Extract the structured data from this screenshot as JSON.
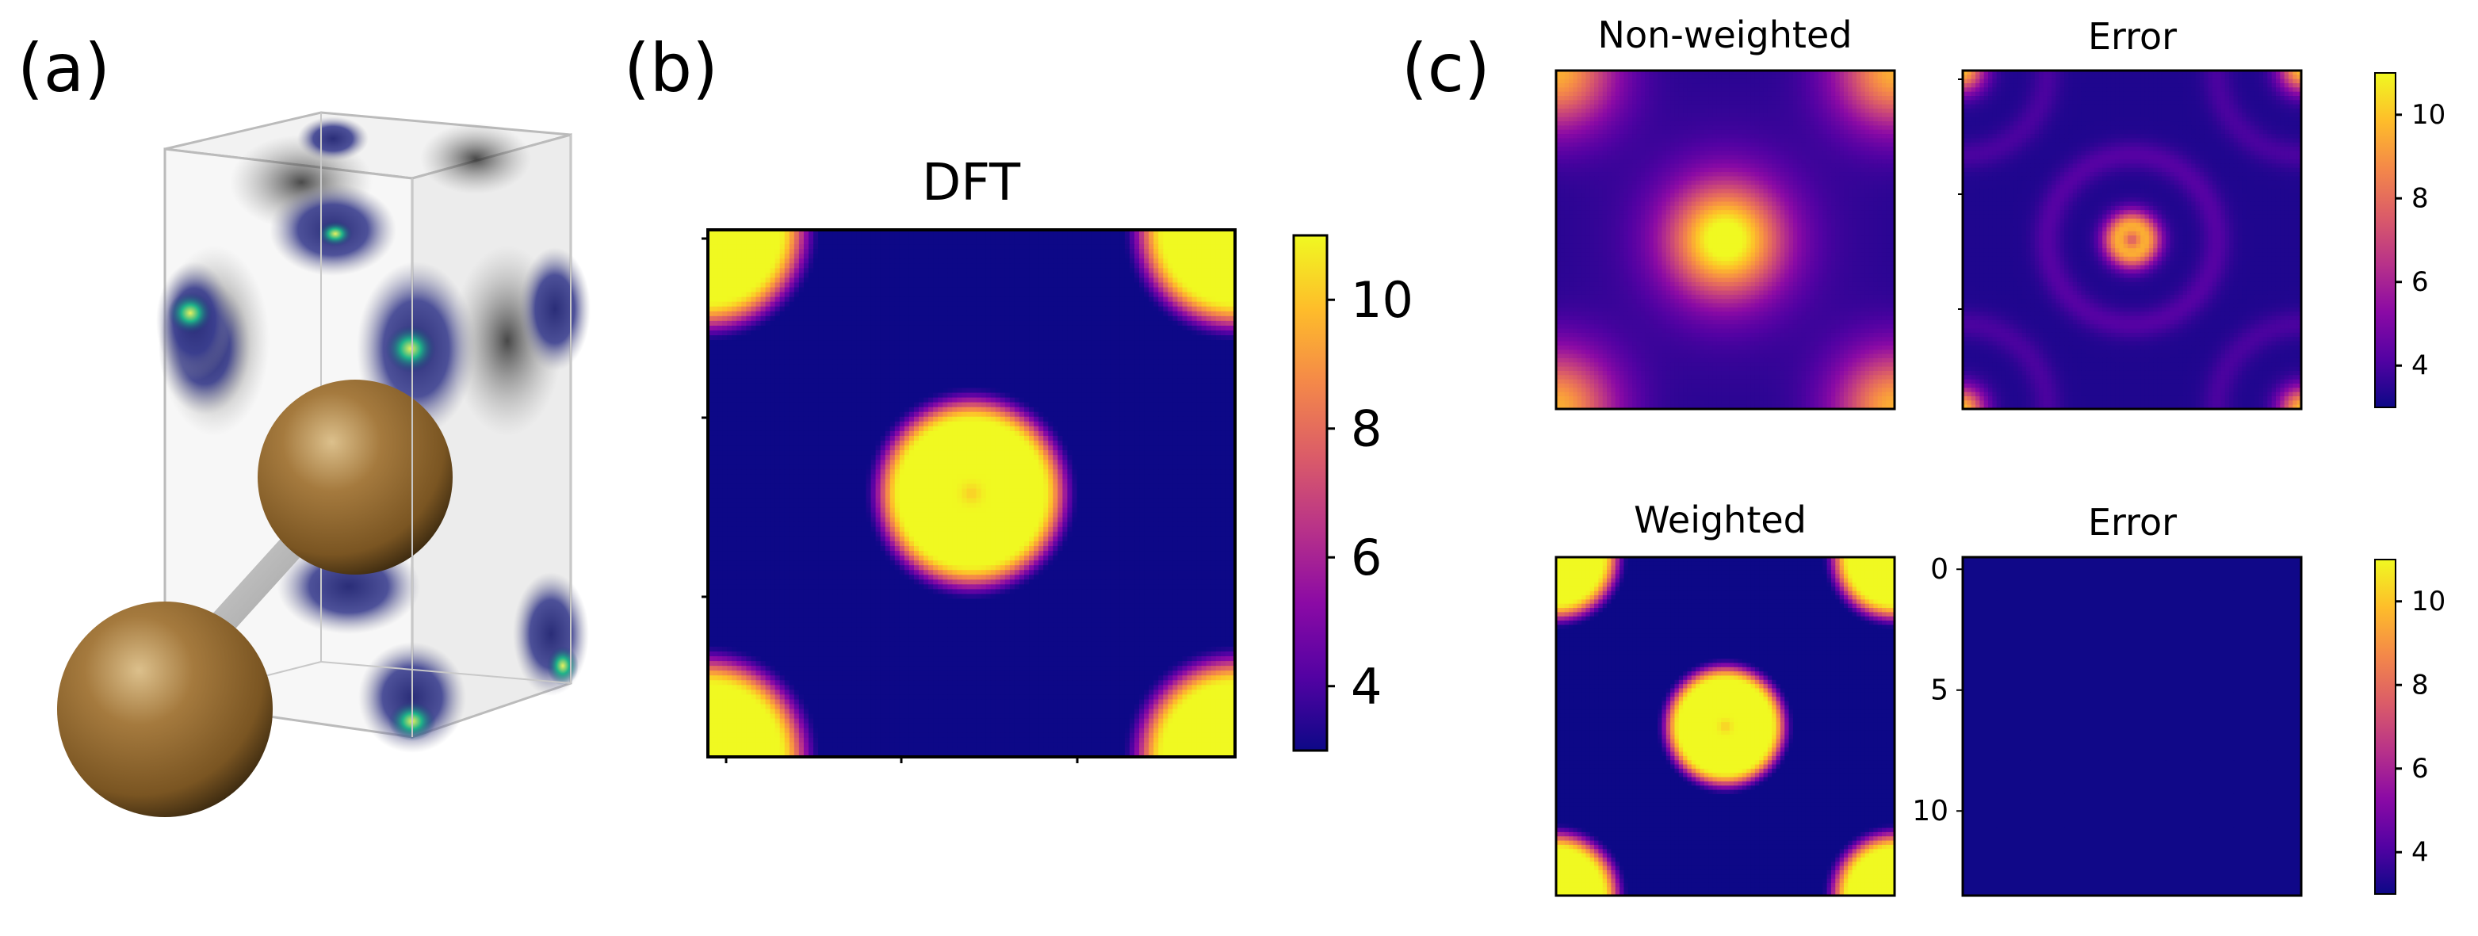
{
  "figure": {
    "panels": {
      "a": {
        "label": "(a)"
      },
      "b": {
        "label": "(b)"
      },
      "c": {
        "label": "(c)"
      }
    }
  },
  "colors": {
    "plasma": [
      "#0d0887",
      "#5302a3",
      "#8b0aa5",
      "#b83289",
      "#db5c68",
      "#f48849",
      "#febd2a",
      "#f0f921"
    ],
    "crystal_atom": "#9a6e35",
    "crystal_lobe": "#3b3f8f",
    "crystal_hot": "#1fb389",
    "cell_edge": "#a9a9a9"
  },
  "chart_data": [
    {
      "id": "dft",
      "type": "heatmap",
      "title": "DFT",
      "colormap": "plasma",
      "color_range": [
        3,
        11
      ],
      "colorbar_ticks": [
        4,
        6,
        8,
        10
      ],
      "pattern": "corner blobs and central disk saturated at max, background at min"
    },
    {
      "id": "non_weighted",
      "type": "heatmap",
      "title": "Non-weighted",
      "colormap": "plasma",
      "color_range": [
        3,
        11
      ],
      "pattern": "smooth: central maximum ~11, corners ~9, background ~3.5-5"
    },
    {
      "id": "non_weighted_error",
      "type": "heatmap",
      "title": "Error",
      "colormap": "plasma",
      "color_range": [
        3,
        11
      ],
      "colorbar_ticks": [
        4,
        6,
        8,
        10
      ],
      "pattern": "ring at center ~7.5 with dip ~6, faint concentric ripples, corners up to ~10"
    },
    {
      "id": "weighted",
      "type": "heatmap",
      "title": "Weighted",
      "colormap": "plasma",
      "color_range": [
        3,
        11
      ],
      "pattern": "same as DFT at smaller scale"
    },
    {
      "id": "weighted_error",
      "type": "heatmap",
      "title": "Error",
      "colormap": "plasma",
      "color_range": [
        3,
        11
      ],
      "colorbar_ticks": [
        4,
        6,
        8,
        10
      ],
      "y_ticks": [
        0,
        5,
        10
      ],
      "pattern": "uniform at minimum (~3)"
    }
  ]
}
